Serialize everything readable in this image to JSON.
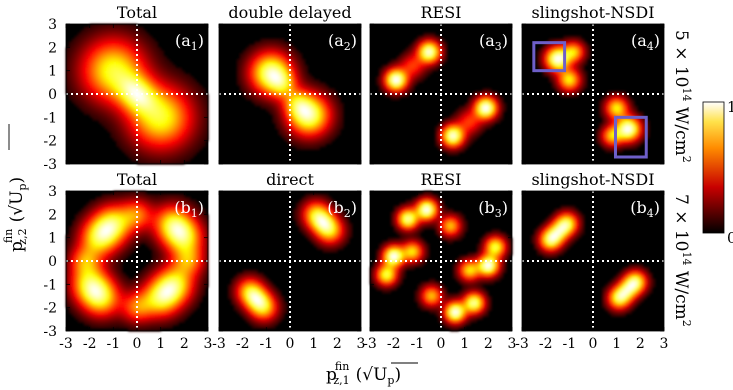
{
  "chart_data": [
    {
      "type": "heatmap",
      "title": "Total",
      "label": "(a",
      "label_sub": "1",
      "intensity": "5 × 10^14 W/cm^2",
      "blobs": [
        [
          -1,
          1,
          0.9,
          1.0
        ],
        [
          1,
          -1,
          0.9,
          1.0
        ],
        [
          -0.2,
          0.2,
          0.5,
          0.45
        ],
        [
          0.2,
          -0.2,
          0.5,
          0.45
        ]
      ]
    },
    {
      "type": "heatmap",
      "title": "double delayed",
      "label": "(a",
      "label_sub": "2",
      "blobs": [
        [
          -0.8,
          0.9,
          0.6,
          1.0
        ],
        [
          0.8,
          -0.9,
          0.6,
          1.0
        ],
        [
          -0.3,
          0.4,
          0.4,
          0.4
        ],
        [
          0.3,
          -0.4,
          0.4,
          0.4
        ]
      ]
    },
    {
      "type": "heatmap",
      "title": "RESI",
      "label": "(a",
      "label_sub": "3",
      "blobs": [
        [
          -1.9,
          0.6,
          0.32,
          0.95
        ],
        [
          -0.5,
          1.8,
          0.32,
          0.9
        ],
        [
          1.9,
          -0.6,
          0.32,
          0.95
        ],
        [
          0.5,
          -1.8,
          0.32,
          0.9
        ],
        [
          -1.2,
          1.2,
          0.35,
          0.35
        ],
        [
          1.2,
          -1.2,
          0.35,
          0.35
        ]
      ]
    },
    {
      "type": "heatmap",
      "title": "slingshot-NSDI",
      "label": "(a",
      "label_sub": "4",
      "blobs": [
        [
          -1.5,
          1.5,
          0.35,
          1.0
        ],
        [
          -1.0,
          0.6,
          0.32,
          0.7
        ],
        [
          -0.8,
          1.8,
          0.3,
          0.6
        ],
        [
          1.5,
          -1.5,
          0.35,
          1.0
        ],
        [
          1.0,
          -0.6,
          0.32,
          0.7
        ],
        [
          0.8,
          -1.8,
          0.3,
          0.6
        ]
      ],
      "boxes": [
        [
          -2.5,
          1.0,
          -1.2,
          2.2
        ],
        [
          0.95,
          -2.7,
          2.25,
          -1.0
        ]
      ],
      "box_color": "#6e5fc9"
    },
    {
      "type": "heatmap",
      "title": "Total",
      "label": "(b",
      "label_sub": "1",
      "intensity": "7 × 10^14 W/cm^2",
      "blobs": [
        [
          -1.6,
          1.0,
          0.55,
          0.85
        ],
        [
          -1.0,
          1.6,
          0.55,
          0.85
        ],
        [
          1.6,
          -1.0,
          0.55,
          0.85
        ],
        [
          1.0,
          -1.6,
          0.55,
          0.85
        ],
        [
          1.5,
          1.6,
          0.55,
          0.8
        ],
        [
          2.0,
          1.0,
          0.55,
          0.8
        ],
        [
          -1.5,
          -1.6,
          0.55,
          0.8
        ],
        [
          -2.0,
          -1.0,
          0.55,
          0.8
        ],
        [
          0,
          2.0,
          0.45,
          0.55
        ],
        [
          0,
          -2.0,
          0.45,
          0.55
        ],
        [
          2.2,
          0,
          0.45,
          0.55
        ],
        [
          -2.2,
          0,
          0.45,
          0.55
        ]
      ]
    },
    {
      "type": "heatmap",
      "title": "direct",
      "label": "(b",
      "label_sub": "2",
      "blobs": [
        [
          1.1,
          2.0,
          0.4,
          0.95
        ],
        [
          1.7,
          1.3,
          0.4,
          0.95
        ],
        [
          1.4,
          1.65,
          0.35,
          0.6
        ],
        [
          -1.1,
          -2.0,
          0.4,
          0.95
        ],
        [
          -1.7,
          -1.3,
          0.4,
          0.95
        ],
        [
          -1.4,
          -1.65,
          0.35,
          0.6
        ]
      ]
    },
    {
      "type": "heatmap",
      "title": "RESI",
      "label": "(b",
      "label_sub": "3",
      "blobs": [
        [
          -0.6,
          2.2,
          0.3,
          0.9
        ],
        [
          -1.4,
          1.8,
          0.3,
          0.8
        ],
        [
          -2.0,
          0.2,
          0.3,
          0.9
        ],
        [
          -2.3,
          -0.6,
          0.3,
          0.7
        ],
        [
          0.6,
          -2.2,
          0.3,
          0.9
        ],
        [
          1.4,
          -1.8,
          0.3,
          0.8
        ],
        [
          2.0,
          -0.2,
          0.3,
          0.9
        ],
        [
          2.3,
          0.6,
          0.3,
          0.7
        ],
        [
          -1.2,
          0.4,
          0.3,
          0.6
        ],
        [
          1.2,
          -0.4,
          0.3,
          0.6
        ],
        [
          0.4,
          1.5,
          0.3,
          0.55
        ],
        [
          -0.4,
          -1.5,
          0.3,
          0.55
        ]
      ]
    },
    {
      "type": "heatmap",
      "title": "slingshot-NSDI",
      "label": "(b",
      "label_sub": "4",
      "blobs": [
        [
          -1.8,
          0.9,
          0.32,
          0.95
        ],
        [
          -1.1,
          1.6,
          0.32,
          0.9
        ],
        [
          -1.45,
          1.25,
          0.3,
          0.6
        ],
        [
          1.8,
          -0.9,
          0.32,
          0.95
        ],
        [
          1.1,
          -1.6,
          0.32,
          0.9
        ],
        [
          1.45,
          -1.25,
          0.3,
          0.6
        ]
      ]
    }
  ],
  "axes": {
    "xlim": [
      -3,
      3
    ],
    "ylim": [
      -3,
      3
    ],
    "ticks": [
      "-3",
      "-2",
      "-1",
      "0",
      "1",
      "2",
      "3"
    ],
    "xlabel_main": "p",
    "xlabel_sup": "fin",
    "xlabel_sub": "z,1",
    "xlabel_unit": "(√U",
    "ylabel_main": "p",
    "ylabel_sup": "fin",
    "ylabel_sub": "z,2",
    "ylabel_unit": "(√U",
    "unit_sub": "p"
  },
  "intensity_labels": [
    {
      "coef": "5 × 10",
      "exp": "14",
      "unit": " W/cm",
      "unit_exp": "2"
    },
    {
      "coef": "7 × 10",
      "exp": "14",
      "unit": " W/cm",
      "unit_exp": "2"
    }
  ],
  "colorbar": {
    "max_label": "1",
    "min_label": "0",
    "colormap": "hot"
  }
}
